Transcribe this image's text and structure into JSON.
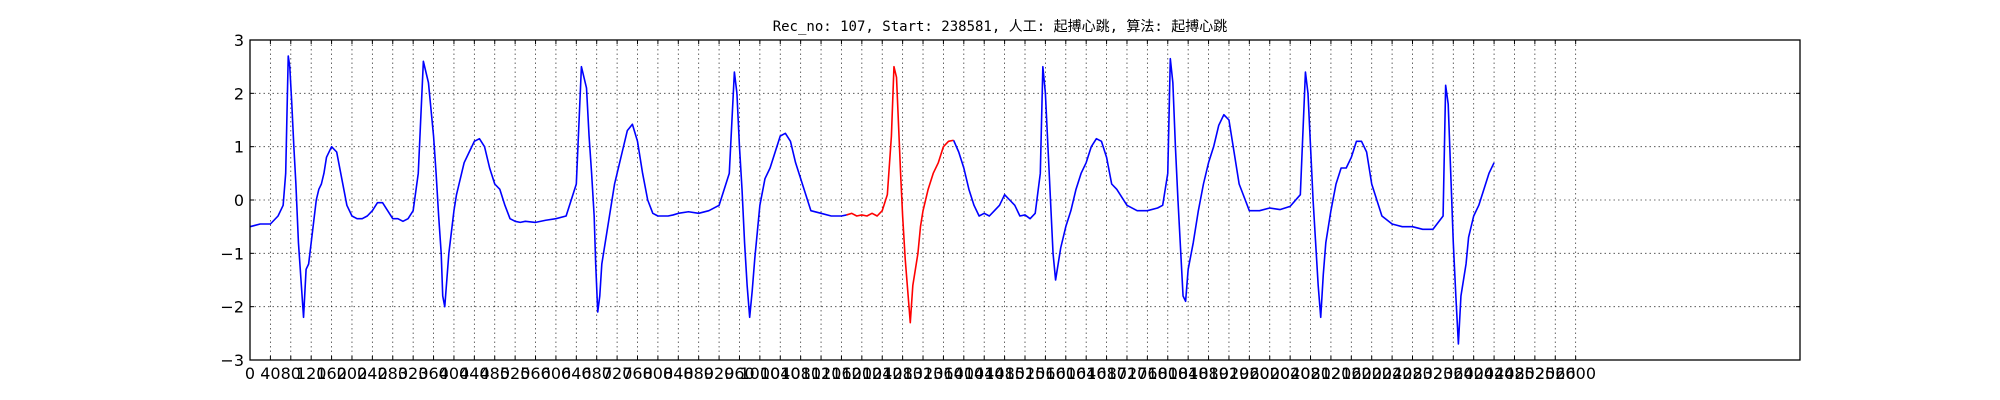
{
  "chart_data": {
    "type": "line",
    "title": "Rec_no: 107, Start: 238581, 人工: 起搏心跳, 算法: 起搏心跳",
    "xlabel": "",
    "ylabel": "",
    "xlim": [
      0,
      3040
    ],
    "ylim": [
      -3,
      3
    ],
    "grid": true,
    "x_ticks": [
      0,
      40,
      80,
      120,
      160,
      200,
      240,
      280,
      320,
      360,
      400,
      440,
      480,
      520,
      560,
      600,
      640,
      680,
      720,
      760,
      800,
      840,
      880,
      920,
      960,
      1000,
      1040,
      1080,
      1120,
      1160,
      1200,
      1240,
      1280,
      1320,
      1360,
      1400,
      1440,
      1480,
      1520,
      1560,
      1600,
      1640,
      1680,
      1720,
      1760,
      1800,
      1840,
      1880,
      1920,
      1960,
      2000,
      2040,
      2080,
      2120,
      2160,
      2200,
      2240,
      2280,
      2320,
      2360,
      2400,
      2440,
      2480,
      2520,
      2560,
      2600
    ],
    "x_tick_labels": [
      "0",
      "40",
      "80",
      "120",
      "160",
      "200",
      "240",
      "280",
      "320",
      "360",
      "400",
      "440",
      "480",
      "520",
      "560",
      "600",
      "640",
      "680",
      "720",
      "760",
      "800",
      "840",
      "880",
      "920",
      "960",
      "1000",
      "1040",
      "1080",
      "1120",
      "1160",
      "1200",
      "1240",
      "1280",
      "1320",
      "1360",
      "1400",
      "1440",
      "1480",
      "1520",
      "1560",
      "1600",
      "1640",
      "1680",
      "1720",
      "1760",
      "1800",
      "1840",
      "1880",
      "1920",
      "1960",
      "2000",
      "2040",
      "2080",
      "2120",
      "2160",
      "2200",
      "2240",
      "2280",
      "2320",
      "2360",
      "2400",
      "2440",
      "2480",
      "2520",
      "2560",
      "2600"
    ],
    "y_ticks": [
      -3,
      -2,
      -1,
      0,
      1,
      2,
      3
    ],
    "y_tick_labels": [
      "−3",
      "−2",
      "−1",
      "0",
      "1",
      "2",
      "3"
    ],
    "series": [
      {
        "color": "#0000ff",
        "x": [
          0,
          20,
          40,
          55,
          65,
          70,
          75,
          78,
          82,
          86,
          90,
          95,
          100,
          105,
          110,
          115,
          120,
          125,
          130,
          135,
          140,
          145,
          150,
          160,
          170,
          180,
          190,
          200,
          210,
          220,
          230,
          240,
          250,
          260,
          270,
          280,
          290,
          300,
          310,
          320,
          330,
          340,
          350,
          360,
          365,
          370,
          375,
          378,
          382,
          386,
          390,
          395,
          400,
          405,
          410,
          415,
          420,
          430,
          440,
          450,
          460,
          470,
          480,
          490,
          500,
          510,
          520,
          530,
          540,
          560,
          580,
          600,
          620,
          640,
          650,
          660,
          665,
          670,
          675,
          678,
          682,
          686,
          690,
          695,
          700,
          705,
          710,
          715,
          720,
          730,
          740,
          750,
          760,
          770,
          780,
          790,
          800,
          810,
          820,
          830,
          840,
          860,
          880,
          900,
          920,
          940,
          950,
          955,
          960,
          965,
          970,
          975,
          980,
          985,
          990,
          995,
          1000,
          1010,
          1020,
          1030,
          1040,
          1050,
          1060,
          1070,
          1080,
          1090,
          1100,
          1120,
          1140,
          1160,
          1170
        ],
        "y": [
          -0.5,
          -0.45,
          -0.45,
          -0.3,
          -0.1,
          0.5,
          2.7,
          2.5,
          1.8,
          1.0,
          0.3,
          -0.8,
          -1.5,
          -2.2,
          -1.3,
          -1.2,
          -0.8,
          -0.4,
          0.0,
          0.2,
          0.3,
          0.5,
          0.8,
          1.0,
          0.9,
          0.4,
          -0.1,
          -0.3,
          -0.35,
          -0.35,
          -0.3,
          -0.2,
          -0.05,
          -0.05,
          -0.2,
          -0.35,
          -0.35,
          -0.4,
          -0.35,
          -0.2,
          0.5,
          2.6,
          2.2,
          1.2,
          0.5,
          -0.3,
          -1.0,
          -1.8,
          -2.0,
          -1.5,
          -1.0,
          -0.6,
          -0.2,
          0.1,
          0.3,
          0.5,
          0.7,
          0.9,
          1.1,
          1.15,
          1.0,
          0.6,
          0.3,
          0.2,
          -0.1,
          -0.35,
          -0.4,
          -0.42,
          -0.4,
          -0.42,
          -0.38,
          -0.35,
          -0.3,
          0.3,
          2.5,
          2.1,
          1.2,
          0.5,
          -0.3,
          -1.2,
          -2.1,
          -1.8,
          -1.2,
          -0.9,
          -0.6,
          -0.3,
          0.0,
          0.3,
          0.5,
          0.9,
          1.3,
          1.42,
          1.1,
          0.5,
          0.0,
          -0.25,
          -0.3,
          -0.3,
          -0.3,
          -0.28,
          -0.25,
          -0.22,
          -0.25,
          -0.2,
          -0.1,
          0.5,
          2.4,
          2.0,
          1.0,
          0.2,
          -0.8,
          -1.6,
          -2.2,
          -1.7,
          -1.1,
          -0.6,
          -0.1,
          0.4,
          0.6,
          0.9,
          1.2,
          1.25,
          1.1,
          0.7,
          0.4,
          0.1,
          -0.2,
          -0.25,
          -0.3,
          -0.3,
          -0.28
        ]
      },
      {
        "color": "#ff0000",
        "x": [
          1170,
          1180,
          1190,
          1200,
          1210,
          1220,
          1230,
          1240,
          1250,
          1258,
          1263,
          1268,
          1272,
          1276,
          1280,
          1285,
          1290,
          1295,
          1300,
          1305,
          1310,
          1315,
          1320,
          1330,
          1340,
          1350,
          1360,
          1370,
          1380
        ],
        "y": [
          -0.28,
          -0.25,
          -0.3,
          -0.28,
          -0.3,
          -0.25,
          -0.3,
          -0.2,
          0.1,
          1.2,
          2.5,
          2.3,
          1.4,
          0.5,
          -0.3,
          -1.1,
          -1.7,
          -2.3,
          -1.6,
          -1.3,
          -1.0,
          -0.5,
          -0.2,
          0.2,
          0.5,
          0.7,
          1.0,
          1.1,
          1.12
        ]
      },
      {
        "color": "#0000ff",
        "x": [
          1380,
          1390,
          1400,
          1410,
          1420,
          1430,
          1440,
          1450,
          1460,
          1470,
          1480,
          1490,
          1500,
          1510,
          1520,
          1530,
          1540,
          1550,
          1555,
          1560,
          1565,
          1570,
          1575,
          1580,
          1585,
          1590,
          1600,
          1610,
          1620,
          1630,
          1640,
          1650,
          1660,
          1670,
          1680,
          1690,
          1700,
          1720,
          1740,
          1760,
          1780,
          1790,
          1800,
          1805,
          1810,
          1815,
          1820,
          1825,
          1830,
          1835,
          1840,
          1850,
          1860,
          1870,
          1880,
          1890,
          1900,
          1910,
          1920,
          1930,
          1940,
          1960,
          1980,
          2000,
          2020,
          2040,
          2060,
          2070,
          2075,
          2080,
          2085,
          2090,
          2095,
          2100,
          2105,
          2110,
          2120,
          2130,
          2140,
          2150,
          2160,
          2170,
          2180,
          2190,
          2200,
          2220,
          2240,
          2260,
          2280,
          2300,
          2320,
          2340,
          2345,
          2350,
          2355,
          2360,
          2365,
          2370,
          2375,
          2380,
          2385,
          2390,
          2400,
          2410,
          2420,
          2430,
          2440
        ],
        "y": [
          1.12,
          0.9,
          0.6,
          0.2,
          -0.1,
          -0.3,
          -0.25,
          -0.3,
          -0.2,
          -0.1,
          0.1,
          0.0,
          -0.1,
          -0.3,
          -0.28,
          -0.35,
          -0.25,
          0.5,
          2.5,
          2.0,
          1.0,
          0.0,
          -1.0,
          -1.5,
          -1.2,
          -0.9,
          -0.5,
          -0.2,
          0.2,
          0.5,
          0.7,
          1.0,
          1.15,
          1.1,
          0.8,
          0.3,
          0.2,
          -0.1,
          -0.2,
          -0.2,
          -0.15,
          -0.1,
          0.5,
          2.65,
          2.2,
          1.0,
          0.0,
          -0.9,
          -1.8,
          -1.9,
          -1.3,
          -0.8,
          -0.2,
          0.3,
          0.7,
          1.0,
          1.4,
          1.6,
          1.5,
          0.9,
          0.3,
          -0.2,
          -0.2,
          -0.15,
          -0.18,
          -0.12,
          0.1,
          2.4,
          2.0,
          1.0,
          0.0,
          -0.8,
          -1.6,
          -2.2,
          -1.4,
          -0.8,
          -0.2,
          0.3,
          0.6,
          0.6,
          0.8,
          1.1,
          1.1,
          0.9,
          0.3,
          -0.3,
          -0.45,
          -0.5,
          -0.5,
          -0.55,
          -0.55,
          -0.3,
          2.15,
          1.8,
          0.5,
          -0.8,
          -1.8,
          -2.7,
          -1.8,
          -1.5,
          -1.2,
          -0.7,
          -0.3,
          -0.1,
          0.2,
          0.5,
          0.7
        ]
      }
    ]
  }
}
